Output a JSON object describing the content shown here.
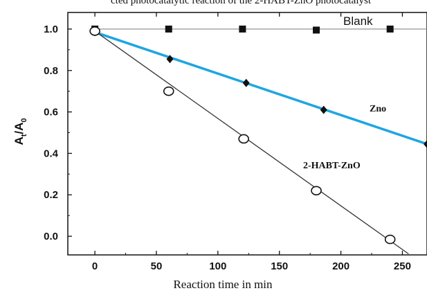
{
  "header_fragment": "cted photocatalytic reaction of the 2-HABT-ZnO photocatalyst",
  "chart_data": {
    "type": "scatter",
    "title": "",
    "xlabel": "Reaction time in min",
    "ylabel_main": "A",
    "ylabel_sub1": "t",
    "ylabel_mid": "/A",
    "ylabel_sub2": "0",
    "xlim": [
      -22,
      270
    ],
    "ylim": [
      -0.09,
      1.08
    ],
    "x_ticks": [
      0,
      50,
      100,
      150,
      200,
      250
    ],
    "y_ticks": [
      0.0,
      0.2,
      0.4,
      0.6,
      0.8,
      1.0
    ],
    "x_tick_labels": [
      "0",
      "50",
      "100",
      "150",
      "200",
      "250"
    ],
    "y_tick_labels": [
      "0.0",
      "0.2",
      "0.4",
      "0.6",
      "0.8",
      "1.0"
    ],
    "grid": false,
    "series": [
      {
        "name": "Blank",
        "marker": "filled-square",
        "color": "#111111",
        "line_color": "#888888",
        "x": [
          0,
          60,
          120,
          180,
          240
        ],
        "y": [
          1.0,
          1.0,
          1.0,
          0.995,
          1.0
        ],
        "fit": {
          "x": [
            0,
            270
          ],
          "y": [
            1.0,
            1.0
          ]
        }
      },
      {
        "name": "Zno",
        "marker": "filled-diamond",
        "color": "#111111",
        "line_color": "#1ea6e0",
        "x": [
          0,
          61,
          123,
          186,
          270
        ],
        "y": [
          0.985,
          0.855,
          0.74,
          0.61,
          0.445
        ],
        "fit": {
          "x": [
            0,
            270
          ],
          "y": [
            0.985,
            0.445
          ]
        }
      },
      {
        "name": "2-HABT-ZnO",
        "marker": "open-circle",
        "color": "#111111",
        "line_color": "#333333",
        "x": [
          0,
          60,
          121,
          180,
          240
        ],
        "y": [
          0.99,
          0.7,
          0.47,
          0.22,
          -0.015
        ],
        "fit": {
          "x": [
            0,
            255
          ],
          "y": [
            0.99,
            -0.085
          ]
        }
      }
    ]
  }
}
